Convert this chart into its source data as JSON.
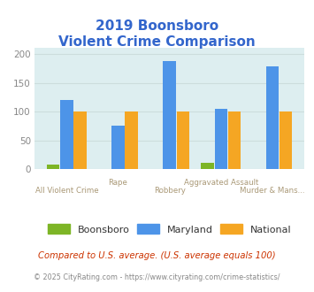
{
  "title_line1": "2019 Boonsboro",
  "title_line2": "Violent Crime Comparison",
  "categories": [
    "All Violent Crime",
    "Rape",
    "Robbery",
    "Aggravated Assault",
    "Murder & Mans..."
  ],
  "cat_top": [
    false,
    true,
    false,
    true,
    false
  ],
  "boonsboro": [
    9,
    0,
    0,
    11,
    0
  ],
  "maryland": [
    120,
    75,
    187,
    105,
    179
  ],
  "national": [
    100,
    100,
    100,
    100,
    100
  ],
  "bar_color_boonsboro": "#7db526",
  "bar_color_maryland": "#4d94e8",
  "bar_color_national": "#f5a623",
  "ylim": [
    0,
    210
  ],
  "yticks": [
    0,
    50,
    100,
    150,
    200
  ],
  "background_color": "#ddeef0",
  "title_color": "#3366cc",
  "footnote1": "Compared to U.S. average. (U.S. average equals 100)",
  "footnote2": "© 2025 CityRating.com - https://www.cityrating.com/crime-statistics/",
  "footnote1_color": "#cc3300",
  "footnote2_color": "#888888",
  "footnote2_url_color": "#3399cc",
  "legend_labels": [
    "Boonsboro",
    "Maryland",
    "National"
  ],
  "xtick_color": "#aa9977",
  "ytick_color": "#888888",
  "figure_bg": "#ffffff",
  "grid_color": "#ccdddd"
}
